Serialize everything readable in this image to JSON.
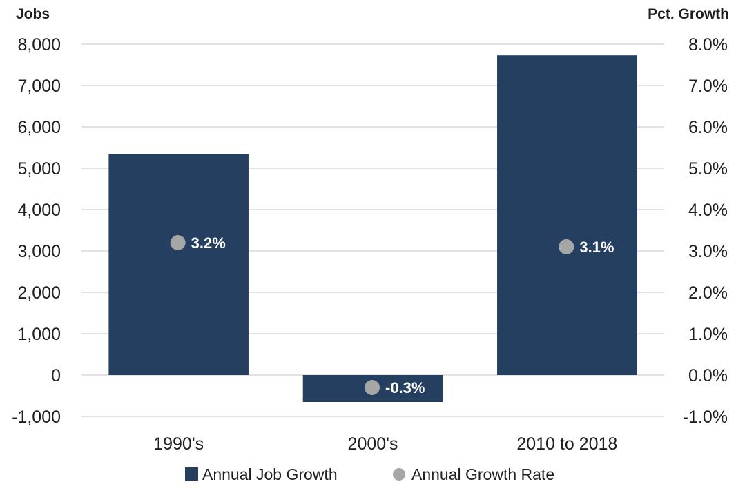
{
  "chart_data": {
    "type": "bar",
    "categories": [
      "1990's",
      "2000's",
      "2010 to 2018"
    ],
    "series": [
      {
        "name": "Annual Job Growth",
        "kind": "bar",
        "axis": "left",
        "values": [
          5350,
          -650,
          7730
        ],
        "color": "#243f60"
      },
      {
        "name": "Annual Growth Rate",
        "kind": "scatter",
        "axis": "right",
        "values": [
          3.2,
          -0.3,
          3.1
        ],
        "labels": [
          "3.2%",
          "-0.3%",
          "3.1%"
        ],
        "color": "#a6a6a6"
      }
    ],
    "y_left": {
      "title": "Jobs",
      "ylim": [
        -1000,
        8000
      ],
      "ticks": [
        -1000,
        0,
        1000,
        2000,
        3000,
        4000,
        5000,
        6000,
        7000,
        8000
      ],
      "tick_labels": [
        "-1,000",
        "0",
        "1,000",
        "2,000",
        "3,000",
        "4,000",
        "5,000",
        "6,000",
        "7,000",
        "8,000"
      ]
    },
    "y_right": {
      "title": "Pct. Growth",
      "ylim": [
        -1.0,
        8.0
      ],
      "ticks": [
        -1.0,
        0,
        1.0,
        2.0,
        3.0,
        4.0,
        5.0,
        6.0,
        7.0,
        8.0
      ],
      "tick_labels": [
        "-1.0%",
        "0.0%",
        "1.0%",
        "2.0%",
        "3.0%",
        "4.0%",
        "5.0%",
        "6.0%",
        "7.0%",
        "8.0%"
      ]
    },
    "grid": true,
    "legend_position": "bottom",
    "gridline_color": "#d9d9d9"
  }
}
